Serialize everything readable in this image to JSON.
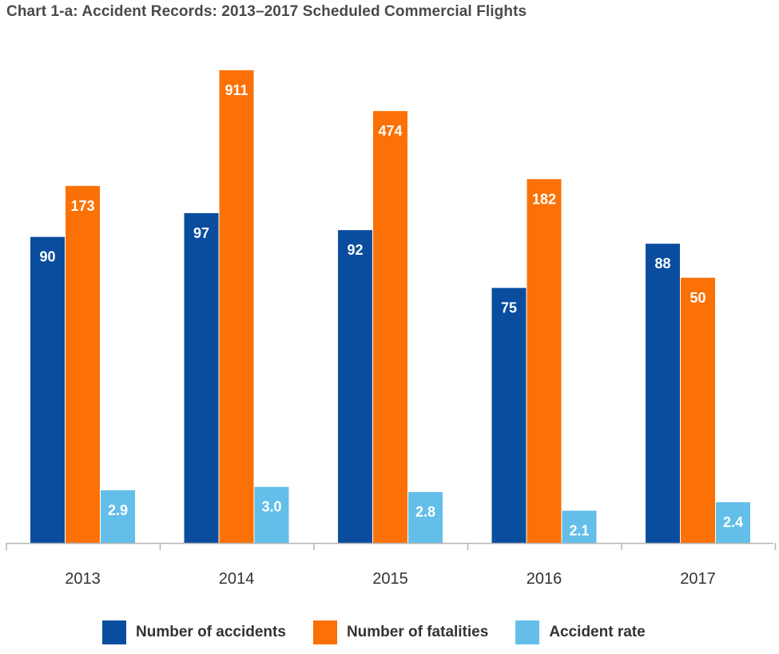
{
  "chart_data": {
    "type": "bar",
    "title": "Chart 1-a: Accident Records: 2013–2017 Scheduled Commercial Flights",
    "categories": [
      "2013",
      "2014",
      "2015",
      "2016",
      "2017"
    ],
    "series": [
      {
        "name": "Number of accidents",
        "color": "#0a4d9f",
        "values": [
          90,
          97,
          92,
          75,
          88
        ],
        "value_labels": [
          "90",
          "97",
          "92",
          "75",
          "88"
        ],
        "display_heights": [
          90,
          97,
          92,
          75,
          88
        ]
      },
      {
        "name": "Number of fatalities",
        "color": "#fb7106",
        "values": [
          173,
          911,
          474,
          182,
          50
        ],
        "value_labels": [
          "173",
          "911",
          "474",
          "182",
          "50"
        ],
        "display_heights": [
          105,
          139,
          127,
          107,
          78
        ]
      },
      {
        "name": "Accident rate",
        "color": "#63bfe9",
        "values": [
          2.9,
          3.0,
          2.8,
          2.1,
          2.4
        ],
        "value_labels": [
          "2.9",
          "3.0",
          "2.8",
          "2.1",
          "2.4"
        ],
        "display_heights": [
          15.5,
          16.5,
          15,
          9.5,
          12
        ]
      }
    ],
    "xlabel": "",
    "ylabel": "",
    "ylim": [
      0,
      139
    ],
    "grid": false,
    "legend_position": "bottom",
    "note": "Bar heights are not drawn to a common scale; display_heights give each bar's relative height in the chart's display units."
  }
}
